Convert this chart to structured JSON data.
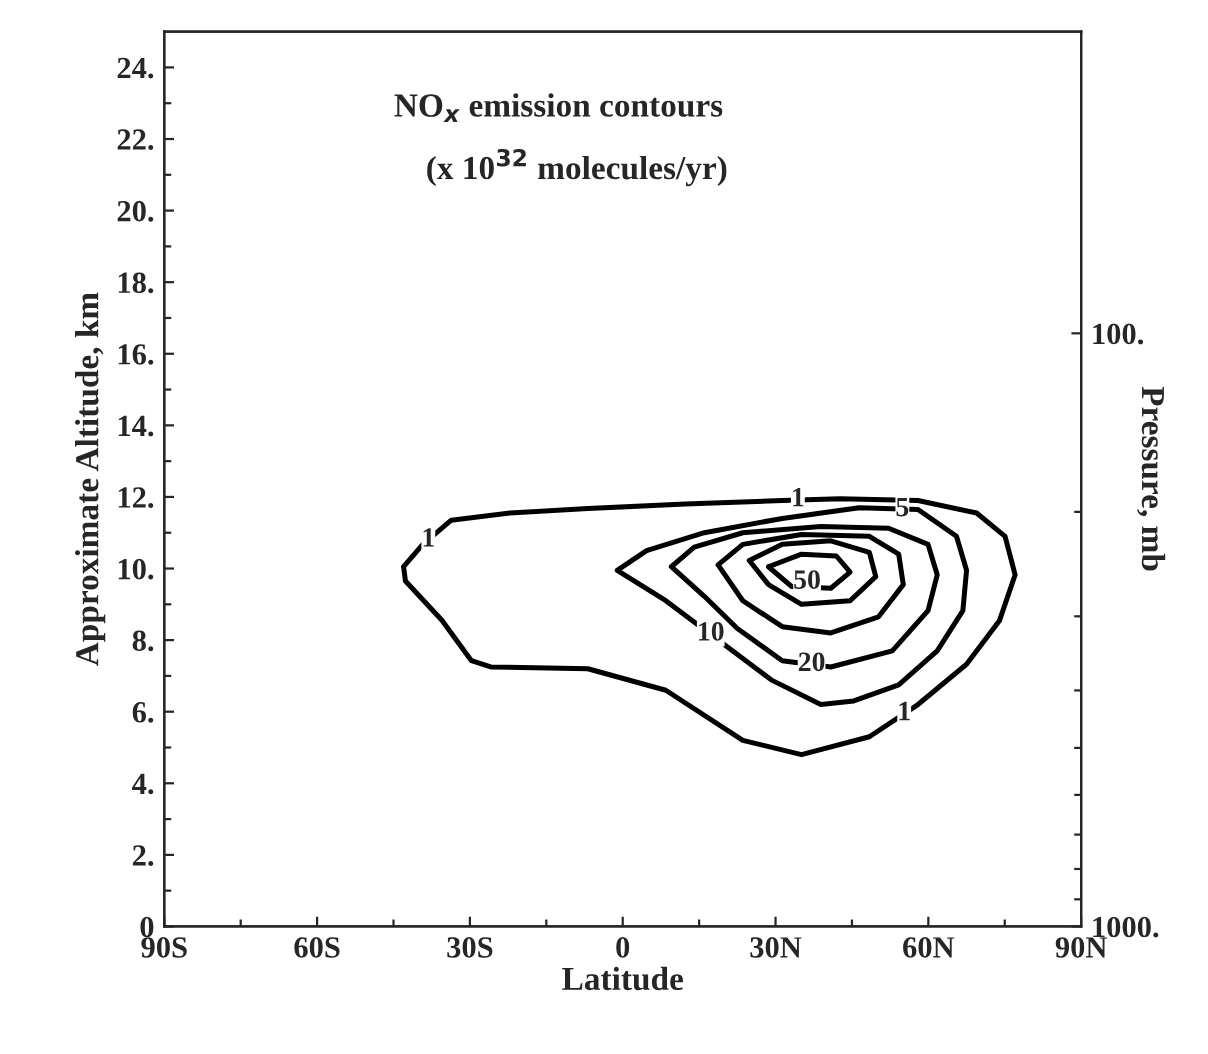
{
  "chart_data": {
    "type": "line",
    "title": "NO$_{x}$ emission contours",
    "subtitle": "(x 10$^{32}$ molecules/yr)",
    "xlabel": "Latitude",
    "ylabel": "Approximate Altitude, km",
    "y2label": "Pressure, mb",
    "xlim": [
      -90,
      90
    ],
    "xticks": [
      {
        "value": -90,
        "label": "90S"
      },
      {
        "value": -75,
        "label": null
      },
      {
        "value": -60,
        "label": "60S"
      },
      {
        "value": -45,
        "label": null
      },
      {
        "value": -30,
        "label": "30S"
      },
      {
        "value": -15,
        "label": null
      },
      0,
      {
        "value": 15,
        "label": null
      },
      {
        "value": 30,
        "label": "30N"
      },
      {
        "value": 45,
        "label": null
      },
      {
        "value": 60,
        "label": "60N"
      },
      {
        "value": 75,
        "label": null
      },
      {
        "value": 90,
        "label": "90N"
      }
    ],
    "ylim": [
      0,
      25
    ],
    "yticks": [
      0,
      {
        "value": 1,
        "label": null
      },
      {
        "value": 2,
        "label": "2."
      },
      {
        "value": 3,
        "label": null
      },
      {
        "value": 4,
        "label": "4."
      },
      {
        "value": 5,
        "label": null
      },
      {
        "value": 6,
        "label": "6."
      },
      {
        "value": 7,
        "label": null
      },
      {
        "value": 8,
        "label": "8."
      },
      {
        "value": 9,
        "label": null
      },
      {
        "value": 10,
        "label": "10."
      },
      {
        "value": 11,
        "label": null
      },
      {
        "value": 12,
        "label": "12."
      },
      {
        "value": 13,
        "label": null
      },
      {
        "value": 14,
        "label": "14."
      },
      {
        "value": 15,
        "label": null
      },
      {
        "value": 16,
        "label": "16."
      },
      {
        "value": 17,
        "label": null
      },
      {
        "value": 18,
        "label": "18."
      },
      {
        "value": 19,
        "label": null
      },
      {
        "value": 20,
        "label": "20."
      },
      {
        "value": 21,
        "label": null
      },
      {
        "value": 22,
        "label": "22."
      },
      {
        "value": 23,
        "label": null
      },
      {
        "value": 24,
        "label": "24."
      }
    ],
    "log": "y2",
    "y2lim": [
      1000,
      31
    ],
    "y2ticks": [
      {
        "value": 100,
        "label": "100."
      },
      {
        "value": 200,
        "label": null
      },
      {
        "value": 300,
        "label": null
      },
      {
        "value": 400,
        "label": null
      },
      {
        "value": 500,
        "label": null
      },
      {
        "value": 600,
        "label": null
      },
      {
        "value": 700,
        "label": null
      },
      {
        "value": 800,
        "label": null
      },
      {
        "value": 900,
        "label": null
      },
      {
        "value": 1000,
        "label": "1000."
      }
    ],
    "grid": false,
    "annotations": [
      "1",
      "1",
      "5",
      "10",
      "20",
      "50",
      "1"
    ]
  }
}
